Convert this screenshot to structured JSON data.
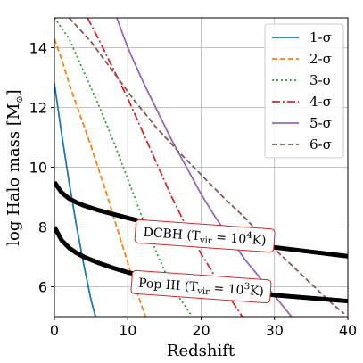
{
  "chart_data": {
    "type": "line",
    "xlabel": "Redshift",
    "ylabel": "log Halo mass [M",
    "ylabel_symbol": "⊙",
    "ylabel_end": "]",
    "xlim": [
      0,
      40
    ],
    "ylim": [
      5,
      15
    ],
    "xticks": [
      0,
      10,
      20,
      30,
      40
    ],
    "yticks": [
      6,
      8,
      10,
      12,
      14
    ],
    "grid": true,
    "legend_position": "top-right",
    "series": [
      {
        "name": "1-σ",
        "color": "#1f77b4",
        "style": "solid",
        "x": [
          0,
          1,
          2,
          3,
          4,
          5,
          5.6
        ],
        "y": [
          12.8,
          11.1,
          9.5,
          8.05,
          6.75,
          5.55,
          5.0
        ]
      },
      {
        "name": "2-σ",
        "color": "#ff7f0e",
        "style": "dashed",
        "x": [
          0,
          1,
          2,
          3,
          4,
          5,
          6,
          7,
          8,
          9,
          10,
          11,
          12.4
        ],
        "y": [
          14.3,
          13.6,
          12.8,
          12.1,
          11.4,
          10.7,
          9.95,
          9.2,
          8.4,
          7.6,
          6.8,
          6.0,
          5.0
        ]
      },
      {
        "name": "3-σ",
        "color": "#2ca02c",
        "style": "dotted",
        "x": [
          0,
          2,
          4,
          6,
          8,
          10,
          12,
          14,
          16,
          18.8
        ],
        "y": [
          15.0,
          14.3,
          13.2,
          12.1,
          10.9,
          9.6,
          8.3,
          7.1,
          6.0,
          5.0
        ]
      },
      {
        "name": "4-σ",
        "color": "#d62728",
        "style": "dashdot",
        "x": [
          4.5,
          6,
          8,
          10,
          12,
          14,
          16,
          18,
          20,
          22,
          24,
          25.6
        ],
        "y": [
          15.0,
          14.3,
          13.3,
          12.3,
          11.2,
          10.1,
          9.0,
          8.0,
          7.1,
          6.3,
          5.6,
          5.0
        ]
      },
      {
        "name": "5-σ",
        "color": "#9467bd",
        "style": "solid",
        "x": [
          8.5,
          10,
          12,
          14,
          16,
          18,
          20,
          22,
          24,
          26,
          28,
          30,
          32.3
        ],
        "y": [
          15.0,
          14.0,
          12.9,
          11.9,
          10.9,
          10.0,
          9.1,
          8.3,
          7.6,
          6.9,
          6.3,
          5.7,
          5.0
        ]
      },
      {
        "name": "6-σ",
        "color": "#8c564b",
        "style": "dashed",
        "x": [
          2,
          5,
          8,
          11,
          14,
          17,
          20,
          23,
          26,
          29,
          32,
          35,
          38,
          39.5
        ],
        "y": [
          15.0,
          14.2,
          13.2,
          12.2,
          11.3,
          10.5,
          9.75,
          9.0,
          8.3,
          7.5,
          6.8,
          6.1,
          5.4,
          5.1
        ]
      },
      {
        "name": "",
        "color": "#000000",
        "style": "thick",
        "x": [
          0,
          1,
          2,
          3,
          4,
          6,
          8,
          10,
          15,
          20,
          25,
          30,
          35,
          40
        ],
        "y": [
          9.5,
          9.15,
          8.95,
          8.82,
          8.72,
          8.56,
          8.43,
          8.3,
          8.0,
          7.72,
          7.5,
          7.32,
          7.17,
          7.02
        ]
      },
      {
        "name": "",
        "color": "#000000",
        "style": "thick",
        "x": [
          0,
          1,
          2,
          3,
          4,
          6,
          8,
          10,
          15,
          20,
          25,
          30,
          35,
          40
        ],
        "y": [
          8.0,
          7.55,
          7.3,
          7.13,
          7.0,
          6.8,
          6.63,
          6.48,
          6.2,
          6.0,
          5.85,
          5.72,
          5.62,
          5.52
        ]
      }
    ],
    "annotations": [
      {
        "text": "DCBH (T",
        "sub": "vir",
        "mid": " = 10",
        "sup": "4",
        "end": "K)",
        "x": 20.5,
        "y": 7.7,
        "rotate": 4
      },
      {
        "text": "Pop III (T",
        "sub": "vir",
        "mid": " = 10",
        "sup": "3",
        "end": "K)",
        "x": 20,
        "y": 6.0,
        "rotate": 4
      }
    ]
  }
}
